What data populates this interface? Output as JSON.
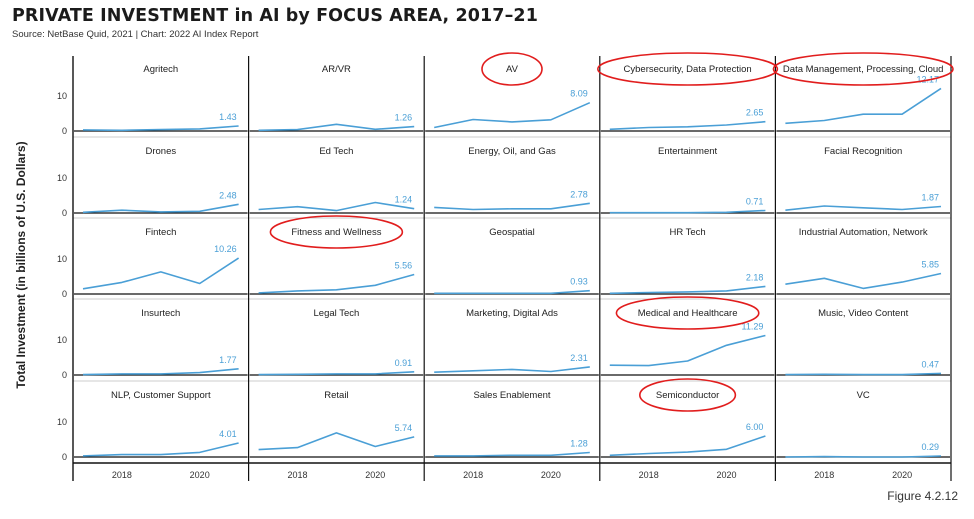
{
  "title": "PRIVATE INVESTMENT in AI by FOCUS AREA, 2017–21",
  "source": "Source: NetBase Quid, 2021 | Chart: 2022 AI Index Report",
  "figure_label": "Figure 4.2.12",
  "colors": {
    "line": "#4a9fd6",
    "grid": "#cccccc",
    "axis": "#111111",
    "annotation": "#e11d1d"
  },
  "chart_data": {
    "type": "line",
    "layout": "small-multiples",
    "ylabel": "Total Investment (in billions of U.S. Dollars)",
    "x": [
      2017,
      2018,
      2019,
      2020,
      2021
    ],
    "x_ticks": [
      2018,
      2020
    ],
    "y_ticks": [
      0,
      10
    ],
    "ylim": [
      0,
      14
    ],
    "panels": [
      {
        "name": "Agritech",
        "values": [
          0.3,
          0.2,
          0.4,
          0.6,
          1.43
        ],
        "label": "1.43"
      },
      {
        "name": "AR/VR",
        "values": [
          0.2,
          0.4,
          1.9,
          0.5,
          1.26
        ],
        "label": "1.26"
      },
      {
        "name": "AV",
        "values": [
          1.0,
          3.3,
          2.6,
          3.2,
          8.09
        ],
        "label": "8.09",
        "circled": true
      },
      {
        "name": "Cybersecurity, Data Protection",
        "values": [
          0.5,
          1.0,
          1.2,
          1.7,
          2.65
        ],
        "label": "2.65",
        "circled": true
      },
      {
        "name": "Data Management, Processing, Cloud",
        "values": [
          2.2,
          3.0,
          4.8,
          4.8,
          12.17
        ],
        "label": "12.17",
        "circled": true
      },
      {
        "name": "Drones",
        "values": [
          0.2,
          0.8,
          0.3,
          0.5,
          2.48
        ],
        "label": "2.48"
      },
      {
        "name": "Ed Tech",
        "values": [
          1.0,
          1.8,
          0.7,
          3.0,
          1.24
        ],
        "label": "1.24"
      },
      {
        "name": "Energy, Oil, and Gas",
        "values": [
          1.6,
          1.0,
          1.2,
          1.2,
          2.78
        ],
        "label": "2.78"
      },
      {
        "name": "Entertainment",
        "values": [
          0.1,
          0.1,
          0.1,
          0.2,
          0.71
        ],
        "label": "0.71"
      },
      {
        "name": "Facial Recognition",
        "values": [
          0.8,
          2.0,
          1.5,
          1.0,
          1.87
        ],
        "label": "1.87"
      },
      {
        "name": "Fintech",
        "values": [
          1.5,
          3.3,
          6.3,
          3.0,
          10.26
        ],
        "label": "10.26"
      },
      {
        "name": "Fitness and Wellness",
        "values": [
          0.3,
          0.9,
          1.2,
          2.5,
          5.56
        ],
        "label": "5.56",
        "circled": true
      },
      {
        "name": "Geospatial",
        "values": [
          0.2,
          0.2,
          0.2,
          0.2,
          0.93
        ],
        "label": "0.93"
      },
      {
        "name": "HR Tech",
        "values": [
          0.2,
          0.4,
          0.6,
          0.9,
          2.18
        ],
        "label": "2.18"
      },
      {
        "name": "Industrial Automation, Network",
        "values": [
          2.8,
          4.5,
          1.6,
          3.4,
          5.85
        ],
        "label": "5.85"
      },
      {
        "name": "Insurtech",
        "values": [
          0.1,
          0.3,
          0.3,
          0.7,
          1.77
        ],
        "label": "1.77"
      },
      {
        "name": "Legal Tech",
        "values": [
          0.1,
          0.2,
          0.3,
          0.3,
          0.91
        ],
        "label": "0.91"
      },
      {
        "name": "Marketing, Digital Ads",
        "values": [
          0.8,
          1.2,
          1.6,
          1.0,
          2.31
        ],
        "label": "2.31"
      },
      {
        "name": "Medical and Healthcare",
        "values": [
          2.8,
          2.7,
          4.0,
          8.5,
          11.29
        ],
        "label": "11.29",
        "circled": true
      },
      {
        "name": "Music, Video Content",
        "values": [
          0.1,
          0.2,
          0.1,
          0.1,
          0.47
        ],
        "label": "0.47"
      },
      {
        "name": "NLP, Customer Support",
        "values": [
          0.3,
          0.7,
          0.7,
          1.3,
          4.01
        ],
        "label": "4.01"
      },
      {
        "name": "Retail",
        "values": [
          2.1,
          2.7,
          6.9,
          3.0,
          5.74
        ],
        "label": "5.74"
      },
      {
        "name": "Sales Enablement",
        "values": [
          0.3,
          0.3,
          0.5,
          0.5,
          1.28
        ],
        "label": "1.28"
      },
      {
        "name": "Semiconductor",
        "values": [
          0.5,
          1.0,
          1.4,
          2.2,
          6.0
        ],
        "label": "6.00",
        "circled": true
      },
      {
        "name": "VC",
        "values": [
          0.0,
          0.1,
          0.0,
          0.0,
          0.29
        ],
        "label": "0.29"
      }
    ]
  }
}
